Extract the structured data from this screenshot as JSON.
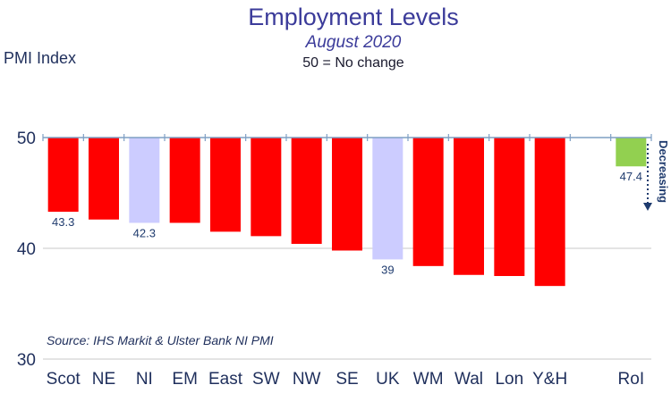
{
  "chart_data": {
    "type": "bar",
    "title": "Employment Levels",
    "subtitle": "August 2020",
    "note": "50 = No change",
    "ylabel": "PMI Index",
    "ylim": [
      30,
      55
    ],
    "yticks": [
      30,
      40,
      50
    ],
    "baseline": 50,
    "categories": [
      "Scot",
      "NE",
      "NI",
      "EM",
      "East",
      "SW",
      "NW",
      "SE",
      "UK",
      "WM",
      "Wal",
      "Lon",
      "Y&H",
      "",
      "RoI"
    ],
    "values": [
      43.3,
      42.6,
      42.3,
      42.3,
      41.5,
      41.1,
      40.4,
      39.8,
      39.0,
      38.4,
      37.6,
      37.5,
      36.6,
      null,
      47.4
    ],
    "data_labels": [
      "43.3",
      "",
      "42.3",
      "",
      "",
      "",
      "",
      "",
      "39",
      "",
      "",
      "",
      "",
      "",
      "47.4"
    ],
    "colors": [
      "#ff0000",
      "#ff0000",
      "#ccccff",
      "#ff0000",
      "#ff0000",
      "#ff0000",
      "#ff0000",
      "#ff0000",
      "#ccccff",
      "#ff0000",
      "#ff0000",
      "#ff0000",
      "#ff0000",
      "",
      "#92d050"
    ],
    "grid": true,
    "trend_label": "Decreasing",
    "source": "Source: IHS Markit & Ulster Bank NI PMI"
  }
}
